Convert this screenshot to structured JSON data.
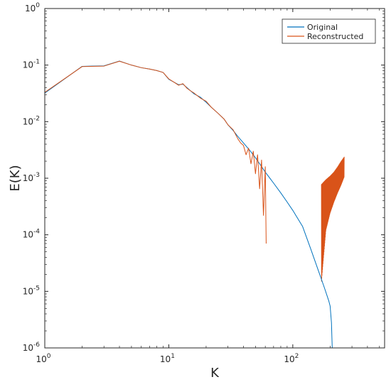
{
  "chart_data": {
    "type": "line",
    "title": "",
    "xlabel": "K",
    "ylabel": "E(K)",
    "x_scale": "log",
    "y_scale": "log",
    "xlim": [
      1,
      550
    ],
    "ylim": [
      1e-06,
      1
    ],
    "grid": false,
    "legend_position": "top-right",
    "x_ticks": [
      {
        "value": 1,
        "base": "10",
        "exp": "0"
      },
      {
        "value": 10,
        "base": "10",
        "exp": "1"
      },
      {
        "value": 100,
        "base": "10",
        "exp": "2"
      }
    ],
    "y_ticks": [
      {
        "value": 1e-06,
        "base": "10",
        "exp": "-6"
      },
      {
        "value": 1e-05,
        "base": "10",
        "exp": "-5"
      },
      {
        "value": 0.0001,
        "base": "10",
        "exp": "-4"
      },
      {
        "value": 0.001,
        "base": "10",
        "exp": "-3"
      },
      {
        "value": 0.01,
        "base": "10",
        "exp": "-2"
      },
      {
        "value": 0.1,
        "base": "10",
        "exp": "-1"
      },
      {
        "value": 1,
        "base": "10",
        "exp": "0"
      }
    ],
    "series": [
      {
        "name": "Original",
        "color": "#0072BD",
        "points": [
          [
            1,
            0.032
          ],
          [
            2,
            0.095
          ],
          [
            3,
            0.097
          ],
          [
            4,
            0.118
          ],
          [
            5,
            0.1
          ],
          [
            6,
            0.09
          ],
          [
            7,
            0.085
          ],
          [
            8,
            0.08
          ],
          [
            9,
            0.074
          ],
          [
            10,
            0.056
          ],
          [
            11,
            0.05
          ],
          [
            12,
            0.045
          ],
          [
            13,
            0.046
          ],
          [
            14,
            0.04
          ],
          [
            15,
            0.035
          ],
          [
            16,
            0.031
          ],
          [
            18,
            0.027
          ],
          [
            20,
            0.022
          ],
          [
            22,
            0.018
          ],
          [
            25,
            0.014
          ],
          [
            28,
            0.011
          ],
          [
            30,
            0.0088
          ],
          [
            33,
            0.007
          ],
          [
            36,
            0.0055
          ],
          [
            40,
            0.0042
          ],
          [
            45,
            0.0031
          ],
          [
            50,
            0.0023
          ],
          [
            55,
            0.0017
          ],
          [
            60,
            0.00128
          ],
          [
            70,
            0.00082
          ],
          [
            80,
            0.00055
          ],
          [
            90,
            0.00038
          ],
          [
            100,
            0.00027
          ],
          [
            120,
            0.00014
          ],
          [
            140,
            5.5e-05
          ],
          [
            160,
            2.4e-05
          ],
          [
            180,
            1.15e-05
          ],
          [
            195,
            6.8e-06
          ],
          [
            200,
            5.5e-06
          ],
          [
            205,
            2.8e-06
          ],
          [
            208,
            1e-06
          ]
        ]
      },
      {
        "name": "Reconstructed",
        "color": "#D95319",
        "points": [
          [
            1,
            0.033
          ],
          [
            2,
            0.094
          ],
          [
            3,
            0.096
          ],
          [
            4,
            0.117
          ],
          [
            5,
            0.1
          ],
          [
            6,
            0.09
          ],
          [
            7,
            0.085
          ],
          [
            8,
            0.08
          ],
          [
            9,
            0.074
          ],
          [
            10,
            0.057
          ],
          [
            11,
            0.05
          ],
          [
            12,
            0.044
          ],
          [
            13,
            0.047
          ],
          [
            14,
            0.039
          ],
          [
            15,
            0.035
          ],
          [
            16,
            0.032
          ],
          [
            18,
            0.026
          ],
          [
            20,
            0.023
          ],
          [
            22,
            0.018
          ],
          [
            25,
            0.014
          ],
          [
            28,
            0.011
          ],
          [
            30,
            0.0088
          ],
          [
            33,
            0.0072
          ],
          [
            36,
            0.005
          ],
          [
            38,
            0.0042
          ],
          [
            40,
            0.0038
          ],
          [
            42,
            0.0026
          ],
          [
            44,
            0.0034
          ],
          [
            46,
            0.0018
          ],
          [
            48,
            0.003
          ],
          [
            50,
            0.0012
          ],
          [
            52,
            0.0026
          ],
          [
            54,
            0.00065
          ],
          [
            56,
            0.0021
          ],
          [
            58,
            0.00022
          ],
          [
            60,
            0.0016
          ],
          [
            61,
            7e-05
          ]
        ],
        "envelope": {
          "k": [
            170,
            185,
            200,
            215,
            230,
            245,
            260
          ],
          "upper": [
            0.00078,
            0.00095,
            0.0011,
            0.0013,
            0.0016,
            0.002,
            0.0024
          ],
          "lower": [
            1.4e-05,
            0.00012,
            0.00024,
            0.00038,
            0.00055,
            0.00075,
            0.00105
          ]
        }
      }
    ]
  }
}
